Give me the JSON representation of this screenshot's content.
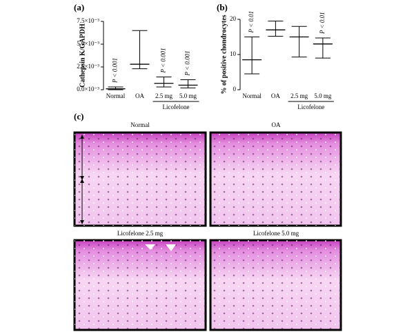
{
  "chart_data": [
    {
      "type": "errorbar",
      "panel_label": "(a)",
      "y_label": "Cathepsin K/GAPDH",
      "categories": [
        "Normal",
        "OA",
        "2.5 mg",
        "5.0 mg"
      ],
      "group_label": "Licofelone",
      "values": [
        0.0001,
        0.0028,
        0.0007,
        0.0005
      ],
      "lower": [
        0.0,
        0.0023,
        0.0003,
        0.0002
      ],
      "upper": [
        0.0003,
        0.0065,
        0.0014,
        0.0011
      ],
      "annotations": [
        "P < 0.001",
        null,
        "P < 0.001",
        "P < 0.001"
      ],
      "color": "#000000",
      "ylim": [
        0,
        0.0075
      ],
      "yticks": [
        {
          "value": 0,
          "label": "0.0×10⁻³"
        },
        {
          "value": 0.0025,
          "label": "2.5×10⁻³"
        },
        {
          "value": 0.005,
          "label": "5.0×10⁻³"
        },
        {
          "value": 0.0075,
          "label": "7.5×10⁻³"
        }
      ]
    },
    {
      "type": "errorbar",
      "panel_label": "(b)",
      "y_label": "% of positive chondrocytes",
      "categories": [
        "Normal",
        "OA",
        "2.5 mg",
        "5.0 mg"
      ],
      "group_label": "Licofelone",
      "values": [
        8.5,
        17,
        15,
        13
      ],
      "lower": [
        4.5,
        15.2,
        9.3,
        9
      ],
      "upper": [
        15,
        19.5,
        18,
        14.7
      ],
      "annotations": [
        "P < 0.01",
        null,
        null,
        "P < 0.01"
      ],
      "color": "#000000",
      "ylim": [
        0,
        20
      ],
      "yticks": [
        0,
        10,
        20
      ]
    }
  ],
  "images": {
    "panel_label": "(c)",
    "titles": [
      "Normal",
      "OA",
      "Licofelone 2.5 mg",
      "Licofelone 5.0  mg"
    ]
  }
}
